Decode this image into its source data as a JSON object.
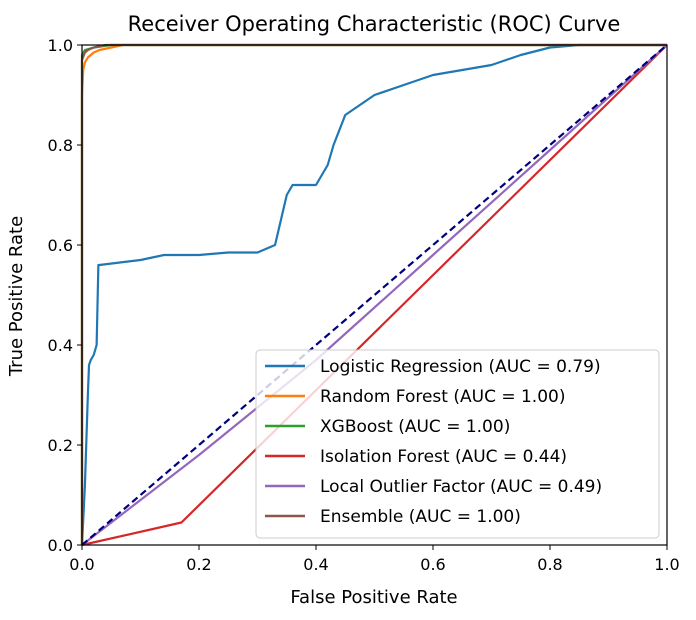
{
  "chart_data": {
    "type": "line",
    "title": "Receiver Operating Characteristic (ROC) Curve",
    "xlabel": "False Positive Rate",
    "ylabel": "True Positive Rate",
    "xlim": [
      0.0,
      1.0
    ],
    "ylim": [
      0.0,
      1.0
    ],
    "xticks": [
      "0.0",
      "0.2",
      "0.4",
      "0.6",
      "0.8",
      "1.0"
    ],
    "yticks": [
      "0.0",
      "0.2",
      "0.4",
      "0.6",
      "0.8",
      "1.0"
    ],
    "legend_position": "lower-right",
    "grid": false,
    "series": [
      {
        "name": "Logistic Regression (AUC = 0.79)",
        "color": "#1f77b4",
        "x": [
          0.0,
          0.005,
          0.01,
          0.012,
          0.015,
          0.02,
          0.025,
          0.028,
          0.03,
          0.1,
          0.14,
          0.2,
          0.25,
          0.3,
          0.33,
          0.34,
          0.35,
          0.36,
          0.37,
          0.4,
          0.42,
          0.43,
          0.45,
          0.5,
          0.55,
          0.6,
          0.65,
          0.7,
          0.75,
          0.8,
          0.85,
          0.9,
          1.0
        ],
        "y": [
          0.0,
          0.12,
          0.3,
          0.36,
          0.37,
          0.38,
          0.4,
          0.56,
          0.56,
          0.57,
          0.58,
          0.58,
          0.585,
          0.585,
          0.6,
          0.65,
          0.7,
          0.72,
          0.72,
          0.72,
          0.76,
          0.8,
          0.86,
          0.9,
          0.92,
          0.94,
          0.95,
          0.96,
          0.98,
          0.995,
          1.0,
          1.0,
          1.0
        ]
      },
      {
        "name": "Random Forest (AUC = 1.00)",
        "color": "#ff7f0e",
        "x": [
          0.0,
          0.0,
          0.002,
          0.005,
          0.01,
          0.02,
          0.03,
          0.05,
          0.07,
          0.1,
          1.0
        ],
        "y": [
          0.0,
          0.9,
          0.95,
          0.965,
          0.975,
          0.985,
          0.99,
          0.995,
          1.0,
          1.0,
          1.0
        ]
      },
      {
        "name": "XGBoost (AUC = 1.00)",
        "color": "#2ca02c",
        "x": [
          0.0,
          0.0,
          0.005,
          0.02,
          0.05,
          0.1,
          1.0
        ],
        "y": [
          0.0,
          0.98,
          0.99,
          0.995,
          1.0,
          1.0,
          1.0
        ]
      },
      {
        "name": "Isolation Forest (AUC = 0.44)",
        "color": "#d62728",
        "x": [
          0.0,
          0.17,
          1.0
        ],
        "y": [
          0.0,
          0.045,
          1.0
        ]
      },
      {
        "name": "Local Outlier Factor (AUC = 0.49)",
        "color": "#9467bd",
        "x": [
          0.0,
          0.1,
          0.2,
          0.4,
          0.6,
          0.8,
          1.0
        ],
        "y": [
          0.0,
          0.09,
          0.18,
          0.37,
          0.58,
          0.79,
          1.0
        ]
      },
      {
        "name": "Ensemble (AUC = 1.00)",
        "color": "#8c564b",
        "x": [
          0.0,
          0.0,
          0.005,
          0.01,
          0.02,
          0.04,
          1.0
        ],
        "y": [
          0.0,
          0.97,
          0.985,
          0.99,
          0.995,
          1.0,
          1.0
        ]
      }
    ],
    "reference_line": {
      "color": "#000080",
      "style": "dashed",
      "x": [
        0.0,
        1.0
      ],
      "y": [
        0.0,
        1.0
      ]
    }
  }
}
